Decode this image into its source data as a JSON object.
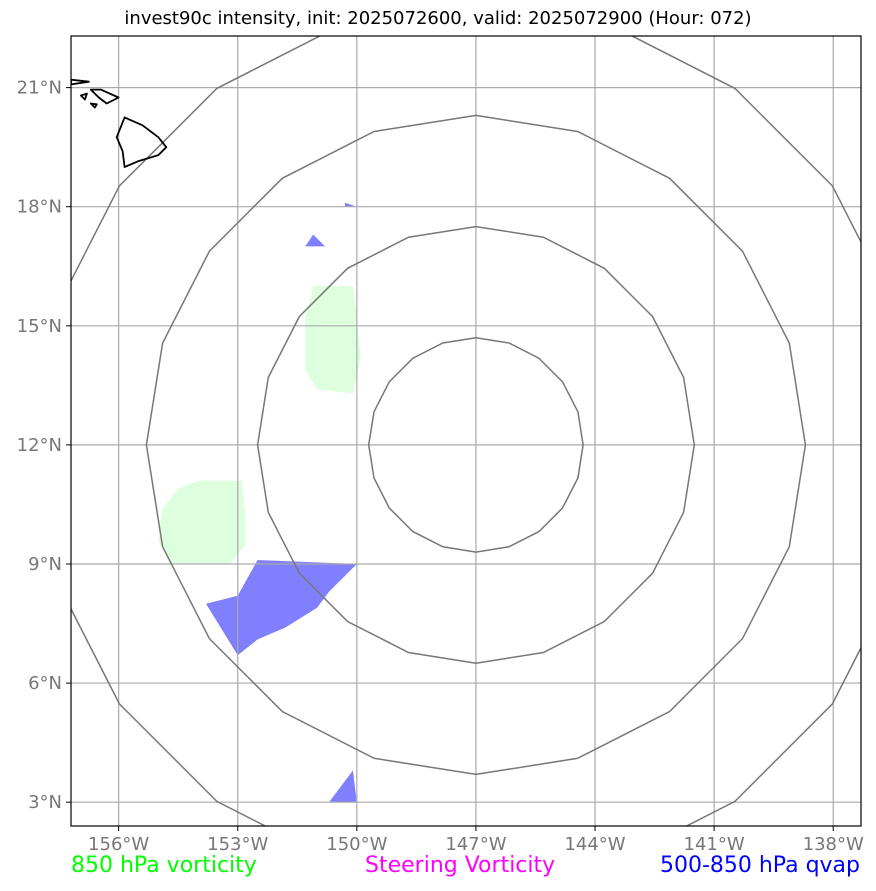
{
  "title": "invest90c intensity, init: 2025072600, valid: 2025072900 (Hour: 072)",
  "map": {
    "lon_range": [
      -157.2,
      -137.3
    ],
    "lat_range": [
      2.4,
      22.3
    ],
    "lon_ticks": [
      -156,
      -153,
      -150,
      -147,
      -144,
      -141,
      -138
    ],
    "lat_ticks": [
      3,
      6,
      9,
      12,
      15,
      18,
      21
    ],
    "lon_tick_labels": [
      "156°W",
      "153°W",
      "150°W",
      "147°W",
      "144°W",
      "141°W",
      "138°W"
    ],
    "lat_tick_labels": [
      "3°N",
      "6°N",
      "9°N",
      "12°N",
      "15°N",
      "18°N",
      "21°N"
    ],
    "gridlines": true,
    "center": {
      "lon": -147.0,
      "lat": 12.0
    },
    "range_rings_deg": [
      2.7,
      5.5,
      8.3,
      11.1
    ],
    "features": [
      "hawaiian-islands-coastline"
    ]
  },
  "shading": [
    {
      "field": "850 hPa vorticity",
      "color": "#ddffdd",
      "polygons": [
        [
          [
            -151.1,
            16.0
          ],
          [
            -150.1,
            16.0
          ],
          [
            -150.0,
            15.2
          ],
          [
            -149.9,
            14.2
          ],
          [
            -150.1,
            13.3
          ],
          [
            -151.0,
            13.4
          ],
          [
            -151.3,
            13.9
          ],
          [
            -151.3,
            15.2
          ]
        ],
        [
          [
            -154.7,
            9.0
          ],
          [
            -153.2,
            9.0
          ],
          [
            -152.8,
            9.5
          ],
          [
            -152.8,
            10.2
          ],
          [
            -152.9,
            11.1
          ],
          [
            -154.0,
            11.1
          ],
          [
            -154.5,
            10.9
          ],
          [
            -154.9,
            10.4
          ],
          [
            -155.0,
            9.6
          ]
        ]
      ]
    },
    {
      "field": "500-850 hPa qvap",
      "color": "#8080ff",
      "polygons": [
        [
          [
            -152.5,
            9.1
          ],
          [
            -150.0,
            9.0
          ],
          [
            -150.7,
            8.3
          ],
          [
            -151.0,
            7.9
          ],
          [
            -151.8,
            7.4
          ],
          [
            -152.5,
            7.1
          ],
          [
            -153.0,
            6.7
          ],
          [
            -153.8,
            8.0
          ],
          [
            -153.0,
            8.2
          ]
        ],
        [
          [
            -151.3,
            17.0
          ],
          [
            -150.8,
            17.0
          ],
          [
            -151.1,
            17.3
          ]
        ],
        [
          [
            -150.3,
            18.0
          ],
          [
            -150.0,
            18.0
          ],
          [
            -150.3,
            18.1
          ]
        ],
        [
          [
            -150.7,
            3.0
          ],
          [
            -150.0,
            3.0
          ],
          [
            -150.1,
            3.8
          ]
        ]
      ]
    }
  ],
  "legend": {
    "left": {
      "label": "850 hPa vorticity",
      "color": "#00ff00"
    },
    "middle": {
      "label": "Steering Vorticity",
      "color": "#ff00ff"
    },
    "right": {
      "label": "500-850 hPa qvap",
      "color": "#0000ff"
    }
  }
}
